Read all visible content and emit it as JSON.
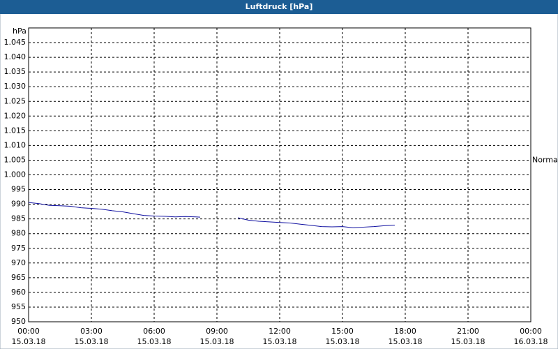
{
  "chart_data": {
    "type": "line",
    "title": "Luftdruck [hPa]",
    "y_unit": "hPa",
    "x": [
      0,
      0.5,
      1,
      1.5,
      2,
      2.5,
      3,
      3.5,
      4,
      4.5,
      5,
      5.5,
      6,
      6.5,
      7,
      7.5,
      8,
      8.2,
      9,
      10,
      10.5,
      11,
      11.5,
      12,
      12.5,
      13,
      13.5,
      14,
      14.5,
      15,
      15.5,
      16,
      16.5,
      17,
      17.5
    ],
    "series": [
      {
        "name": "Luftdruck",
        "color": "#1010a0",
        "values": [
          990.6,
          990.2,
          989.6,
          989.5,
          989.3,
          988.8,
          988.6,
          988.3,
          987.8,
          987.4,
          986.8,
          986.2,
          986.0,
          985.9,
          985.7,
          985.8,
          985.7,
          985.6,
          null,
          985.4,
          984.6,
          984.2,
          984.0,
          983.8,
          983.6,
          983.2,
          982.8,
          982.4,
          982.3,
          982.4,
          982.0,
          982.2,
          982.4,
          982.7,
          982.9
        ]
      }
    ],
    "xlim": [
      0,
      24
    ],
    "xticks": [
      {
        "value": 0,
        "label": "00:00",
        "date": "15.03.18"
      },
      {
        "value": 3,
        "label": "03:00",
        "date": "15.03.18"
      },
      {
        "value": 6,
        "label": "06:00",
        "date": "15.03.18"
      },
      {
        "value": 9,
        "label": "09:00",
        "date": "15.03.18"
      },
      {
        "value": 12,
        "label": "12:00",
        "date": "15.03.18"
      },
      {
        "value": 15,
        "label": "15:00",
        "date": "15.03.18"
      },
      {
        "value": 18,
        "label": "18:00",
        "date": "15.03.18"
      },
      {
        "value": 21,
        "label": "21:00",
        "date": "15.03.18"
      },
      {
        "value": 24,
        "label": "00:00",
        "date": "16.03.18"
      }
    ],
    "ylim": [
      950,
      1050
    ],
    "yticks": [
      950,
      955,
      960,
      965,
      970,
      975,
      980,
      985,
      990,
      995,
      {
        "value": 1000,
        "label": "1.000"
      },
      {
        "value": 1005,
        "label": "1.005"
      },
      {
        "value": 1010,
        "label": "1.010"
      },
      {
        "value": 1015,
        "label": "1.015"
      },
      {
        "value": 1020,
        "label": "1.020"
      },
      {
        "value": 1025,
        "label": "1.025"
      },
      {
        "value": 1030,
        "label": "1.030"
      },
      {
        "value": 1035,
        "label": "1.035"
      },
      {
        "value": 1040,
        "label": "1.040"
      },
      {
        "value": 1045,
        "label": "1.045"
      }
    ],
    "normal": {
      "value": 1005,
      "label": "Normal"
    },
    "grid": true
  }
}
